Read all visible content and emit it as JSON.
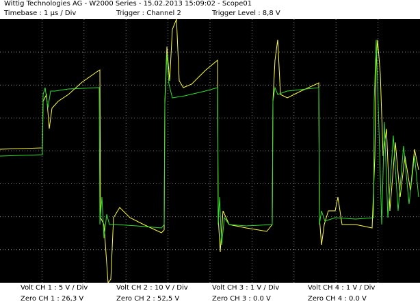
{
  "header": {
    "title": "Wittig Technologies AG - W2000 Series  -  15.02.2013 15:09:02 - Scope01",
    "timebase": "Timebase : 1 µs / Div",
    "trigger": "Trigger : Channel 2",
    "trigger_level": "Trigger Level : 8,8 V"
  },
  "channels": [
    {
      "volt": "Volt CH 1 : 5 V / Div",
      "zero": "Zero CH 1 : 26,3 V"
    },
    {
      "volt": "Volt CH 2 : 10 V / Div",
      "zero": "Zero CH 2 : 52,5 V"
    },
    {
      "volt": "Volt CH 3 : 1 V / Div",
      "zero": "Zero CH 3 : 0.0 V"
    },
    {
      "volt": "Volt CH 4 : 1 V / Div",
      "zero": "Zero CH 4 : 0.0 V"
    }
  ]
}
